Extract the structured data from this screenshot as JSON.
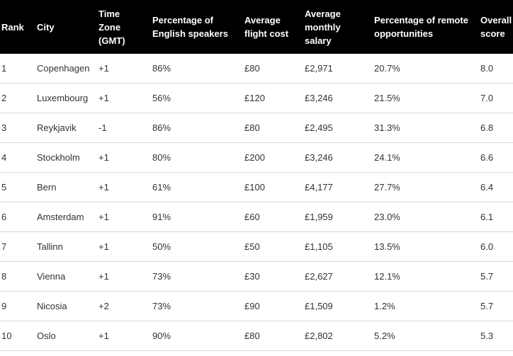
{
  "chart_data": {
    "type": "table",
    "title": "",
    "columns": [
      "Rank",
      "City",
      "Time Zone (GMT)",
      "Percentage of English speakers",
      "Average flight cost",
      "Average monthly salary",
      "Percentage of remote opportunities",
      "Overall score"
    ],
    "rows": [
      [
        "1",
        "Copenhagen",
        "+1",
        "86%",
        "£80",
        "£2,971",
        "20.7%",
        "8.0"
      ],
      [
        "2",
        "Luxembourg",
        "+1",
        "56%",
        "£120",
        "£3,246",
        "21.5%",
        "7.0"
      ],
      [
        "3",
        "Reykjavik",
        "-1",
        "86%",
        "£80",
        "£2,495",
        "31.3%",
        "6.8"
      ],
      [
        "4",
        "Stockholm",
        "+1",
        "80%",
        "£200",
        "£3,246",
        "24.1%",
        "6.6"
      ],
      [
        "5",
        "Bern",
        "+1",
        "61%",
        "£100",
        "£4,177",
        "27.7%",
        "6.4"
      ],
      [
        "6",
        "Amsterdam",
        "+1",
        "91%",
        "£60",
        "£1,959",
        "23.0%",
        "6.1"
      ],
      [
        "7",
        "Tallinn",
        "+1",
        "50%",
        "£50",
        "£1,105",
        "13.5%",
        "6.0"
      ],
      [
        "8",
        "Vienna",
        "+1",
        "73%",
        "£30",
        "£2,627",
        "12.1%",
        "5.7"
      ],
      [
        "9",
        "Nicosia",
        "+2",
        "73%",
        "£90",
        "£1,509",
        "1.2%",
        "5.7"
      ],
      [
        "10",
        "Oslo",
        "+1",
        "90%",
        "£80",
        "£2,802",
        "5.2%",
        "5.3"
      ]
    ],
    "layout": {
      "header_bg": "#000000",
      "header_text_color": "#ffffff",
      "body_text_color": "#333333",
      "divider_color": "#d9d9d9",
      "grid": "horizontal-dividers-only",
      "legend": "none"
    }
  }
}
